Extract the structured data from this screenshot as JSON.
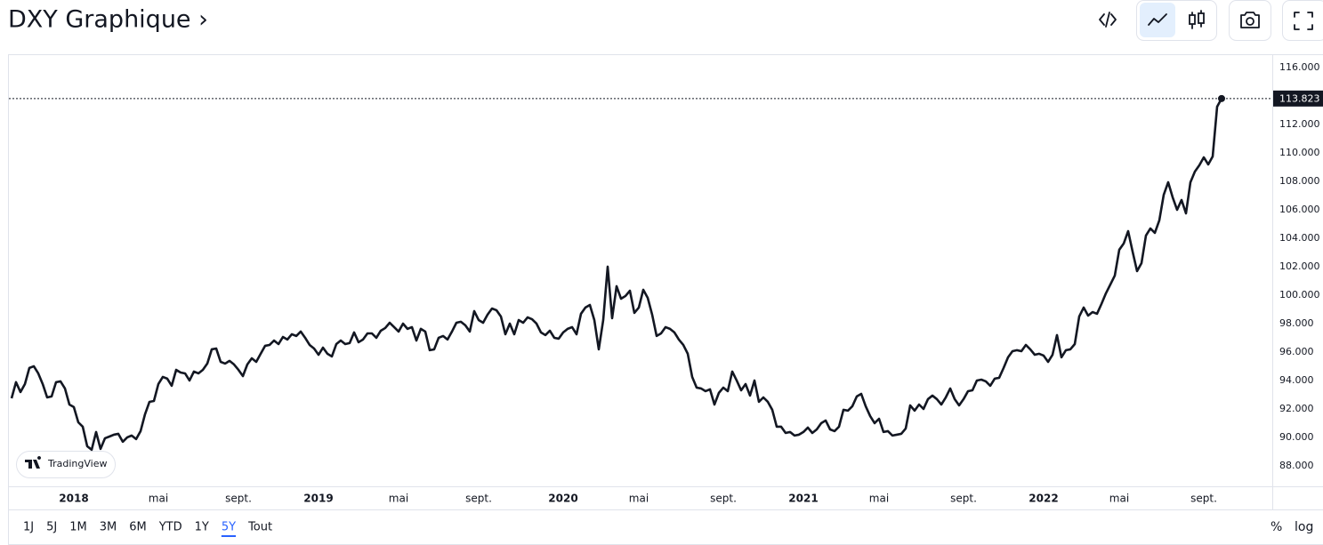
{
  "header": {
    "title": "DXY Graphique ›"
  },
  "chart_data": {
    "type": "line",
    "color": "#131722",
    "log": false,
    "grid": false,
    "categories": [
      null,
      null,
      null,
      null,
      null,
      null,
      null,
      null,
      null,
      null,
      null,
      null,
      null,
      null,
      "2018",
      null,
      null,
      null,
      null,
      null,
      null,
      null,
      null,
      null,
      null,
      null,
      null,
      null,
      null,
      null,
      null,
      null,
      null,
      "mai",
      null,
      null,
      null,
      null,
      null,
      null,
      null,
      null,
      null,
      null,
      null,
      null,
      null,
      null,
      null,
      null,
      null,
      "sept.",
      null,
      null,
      null,
      null,
      null,
      null,
      null,
      null,
      null,
      null,
      null,
      null,
      null,
      null,
      null,
      null,
      null,
      "2019",
      null,
      null,
      null,
      null,
      null,
      null,
      null,
      null,
      null,
      null,
      null,
      null,
      null,
      null,
      null,
      null,
      null,
      "mai",
      null,
      null,
      null,
      null,
      null,
      null,
      null,
      null,
      null,
      null,
      null,
      null,
      null,
      null,
      null,
      null,
      null,
      "sept.",
      null,
      null,
      null,
      null,
      null,
      null,
      null,
      null,
      null,
      null,
      null,
      null,
      null,
      null,
      null,
      null,
      null,
      null,
      "2020",
      null,
      null,
      null,
      null,
      null,
      null,
      null,
      null,
      null,
      null,
      null,
      null,
      null,
      null,
      null,
      null,
      "mai",
      null,
      null,
      null,
      null,
      null,
      null,
      null,
      null,
      null,
      null,
      null,
      null,
      null,
      null,
      null,
      null,
      null,
      null,
      "sept.",
      null,
      null,
      null,
      null,
      null,
      null,
      null,
      null,
      null,
      null,
      null,
      null,
      null,
      null,
      null,
      null,
      null,
      "2021",
      null,
      null,
      null,
      null,
      null,
      null,
      null,
      null,
      null,
      null,
      null,
      null,
      null,
      null,
      null,
      null,
      "mai",
      null,
      null,
      null,
      null,
      null,
      null,
      null,
      null,
      null,
      null,
      null,
      null,
      null,
      null,
      null,
      null,
      null,
      null,
      "sept.",
      null,
      null,
      null,
      null,
      null,
      null,
      null,
      null,
      null,
      null,
      null,
      null,
      null,
      null,
      null,
      null,
      null,
      "2022",
      null,
      null,
      null,
      null,
      null,
      null,
      null,
      null,
      null,
      null,
      null,
      null,
      null,
      null,
      null,
      null,
      "mai",
      null,
      null,
      null,
      null,
      null,
      null,
      null,
      null,
      null,
      null,
      null,
      null,
      null,
      null,
      null,
      null,
      null,
      null,
      "sept.",
      null,
      null,
      null,
      null
    ],
    "values": [
      92.75,
      93.88,
      93.19,
      93.75,
      94.88,
      95.0,
      94.5,
      93.75,
      92.81,
      92.88,
      93.88,
      93.94,
      93.44,
      92.31,
      92.13,
      91.06,
      90.75,
      89.38,
      89.13,
      90.38,
      89.19,
      89.94,
      90.06,
      90.19,
      90.25,
      89.69,
      90.0,
      90.13,
      89.88,
      90.44,
      91.63,
      92.5,
      92.56,
      93.75,
      94.25,
      94.13,
      93.63,
      94.75,
      94.56,
      94.5,
      94.0,
      94.63,
      94.5,
      94.75,
      95.19,
      96.19,
      96.25,
      95.31,
      95.19,
      95.38,
      95.13,
      94.75,
      94.31,
      95.13,
      95.56,
      95.31,
      95.88,
      96.44,
      96.5,
      96.81,
      96.56,
      97.06,
      96.88,
      97.25,
      97.13,
      97.44,
      97.0,
      96.5,
      96.25,
      95.81,
      96.31,
      95.88,
      95.69,
      96.56,
      96.81,
      96.56,
      96.63,
      97.38,
      96.69,
      96.88,
      97.31,
      97.31,
      97.0,
      97.5,
      97.69,
      98.06,
      97.75,
      97.44,
      98.0,
      97.63,
      97.75,
      96.81,
      97.63,
      97.44,
      96.13,
      96.19,
      97.0,
      97.13,
      96.88,
      97.44,
      98.06,
      98.13,
      97.88,
      97.44,
      98.88,
      98.25,
      98.06,
      98.63,
      99.06,
      98.94,
      98.5,
      97.25,
      98.0,
      97.25,
      98.25,
      98.06,
      98.44,
      98.31,
      98.0,
      97.38,
      97.19,
      97.5,
      97.0,
      96.94,
      97.38,
      97.63,
      97.75,
      97.25,
      98.69,
      99.13,
      99.31,
      98.25,
      96.19,
      98.25,
      102.0,
      98.38,
      100.63,
      99.75,
      99.94,
      100.31,
      98.75,
      99.13,
      100.38,
      99.81,
      98.63,
      97.13,
      97.31,
      97.75,
      97.63,
      97.38,
      96.88,
      96.5,
      95.88,
      94.25,
      93.5,
      93.44,
      93.25,
      93.38,
      92.31,
      93.13,
      93.5,
      93.25,
      94.63,
      94.0,
      93.31,
      93.75,
      92.94,
      94.0,
      92.5,
      92.81,
      92.5,
      91.94,
      90.75,
      90.75,
      90.31,
      90.38,
      90.13,
      90.19,
      90.38,
      90.69,
      90.31,
      90.56,
      91.0,
      91.19,
      90.56,
      90.44,
      90.75,
      91.94,
      91.88,
      92.19,
      92.88,
      93.06,
      92.19,
      91.5,
      91.0,
      91.31,
      90.38,
      90.44,
      90.13,
      90.19,
      90.25,
      90.63,
      92.25,
      91.88,
      92.31,
      92.0,
      92.69,
      92.94,
      92.69,
      92.31,
      92.81,
      93.44,
      92.69,
      92.25,
      92.69,
      93.25,
      93.31,
      94.0,
      94.06,
      93.94,
      93.63,
      94.13,
      94.19,
      94.88,
      95.63,
      96.06,
      96.13,
      96.06,
      96.5,
      96.19,
      95.81,
      95.88,
      95.75,
      95.31,
      95.81,
      97.19,
      95.63,
      96.13,
      96.19,
      96.56,
      98.5,
      99.13,
      98.56,
      98.81,
      98.69,
      99.38,
      100.13,
      100.75,
      101.38,
      103.19,
      103.63,
      104.5,
      103.06,
      101.69,
      102.25,
      104.19,
      104.69,
      104.38,
      105.25,
      107.06,
      107.94,
      106.88,
      106.0,
      106.69,
      105.75,
      107.94,
      108.69,
      109.13,
      109.69,
      109.19,
      109.75,
      113.25,
      113.823
    ],
    "ylim": [
      86.56,
      116.875
    ],
    "yticks": [
      {
        "value": 88,
        "label": "88.000"
      },
      {
        "value": 90,
        "label": "90.000"
      },
      {
        "value": 92,
        "label": "92.000"
      },
      {
        "value": 94,
        "label": "94.000"
      },
      {
        "value": 96,
        "label": "96.000"
      },
      {
        "value": 98,
        "label": "98.000"
      },
      {
        "value": 100,
        "label": "100.000"
      },
      {
        "value": 102,
        "label": "102.000"
      },
      {
        "value": 104,
        "label": "104.000"
      },
      {
        "value": 106,
        "label": "106.000"
      },
      {
        "value": 108,
        "label": "108.000"
      },
      {
        "value": 110,
        "label": "110.000"
      },
      {
        "value": 112,
        "label": "112.000"
      },
      {
        "value": 116,
        "label": "116.000"
      }
    ]
  },
  "controls": {
    "ranges": [
      "1J",
      "5J",
      "1M",
      "3M",
      "6M",
      "YTD",
      "1Y",
      "5Y",
      "Tout"
    ],
    "selected_range": "5Y",
    "scales": [
      "%",
      "log"
    ],
    "watermark": "TradingView"
  }
}
